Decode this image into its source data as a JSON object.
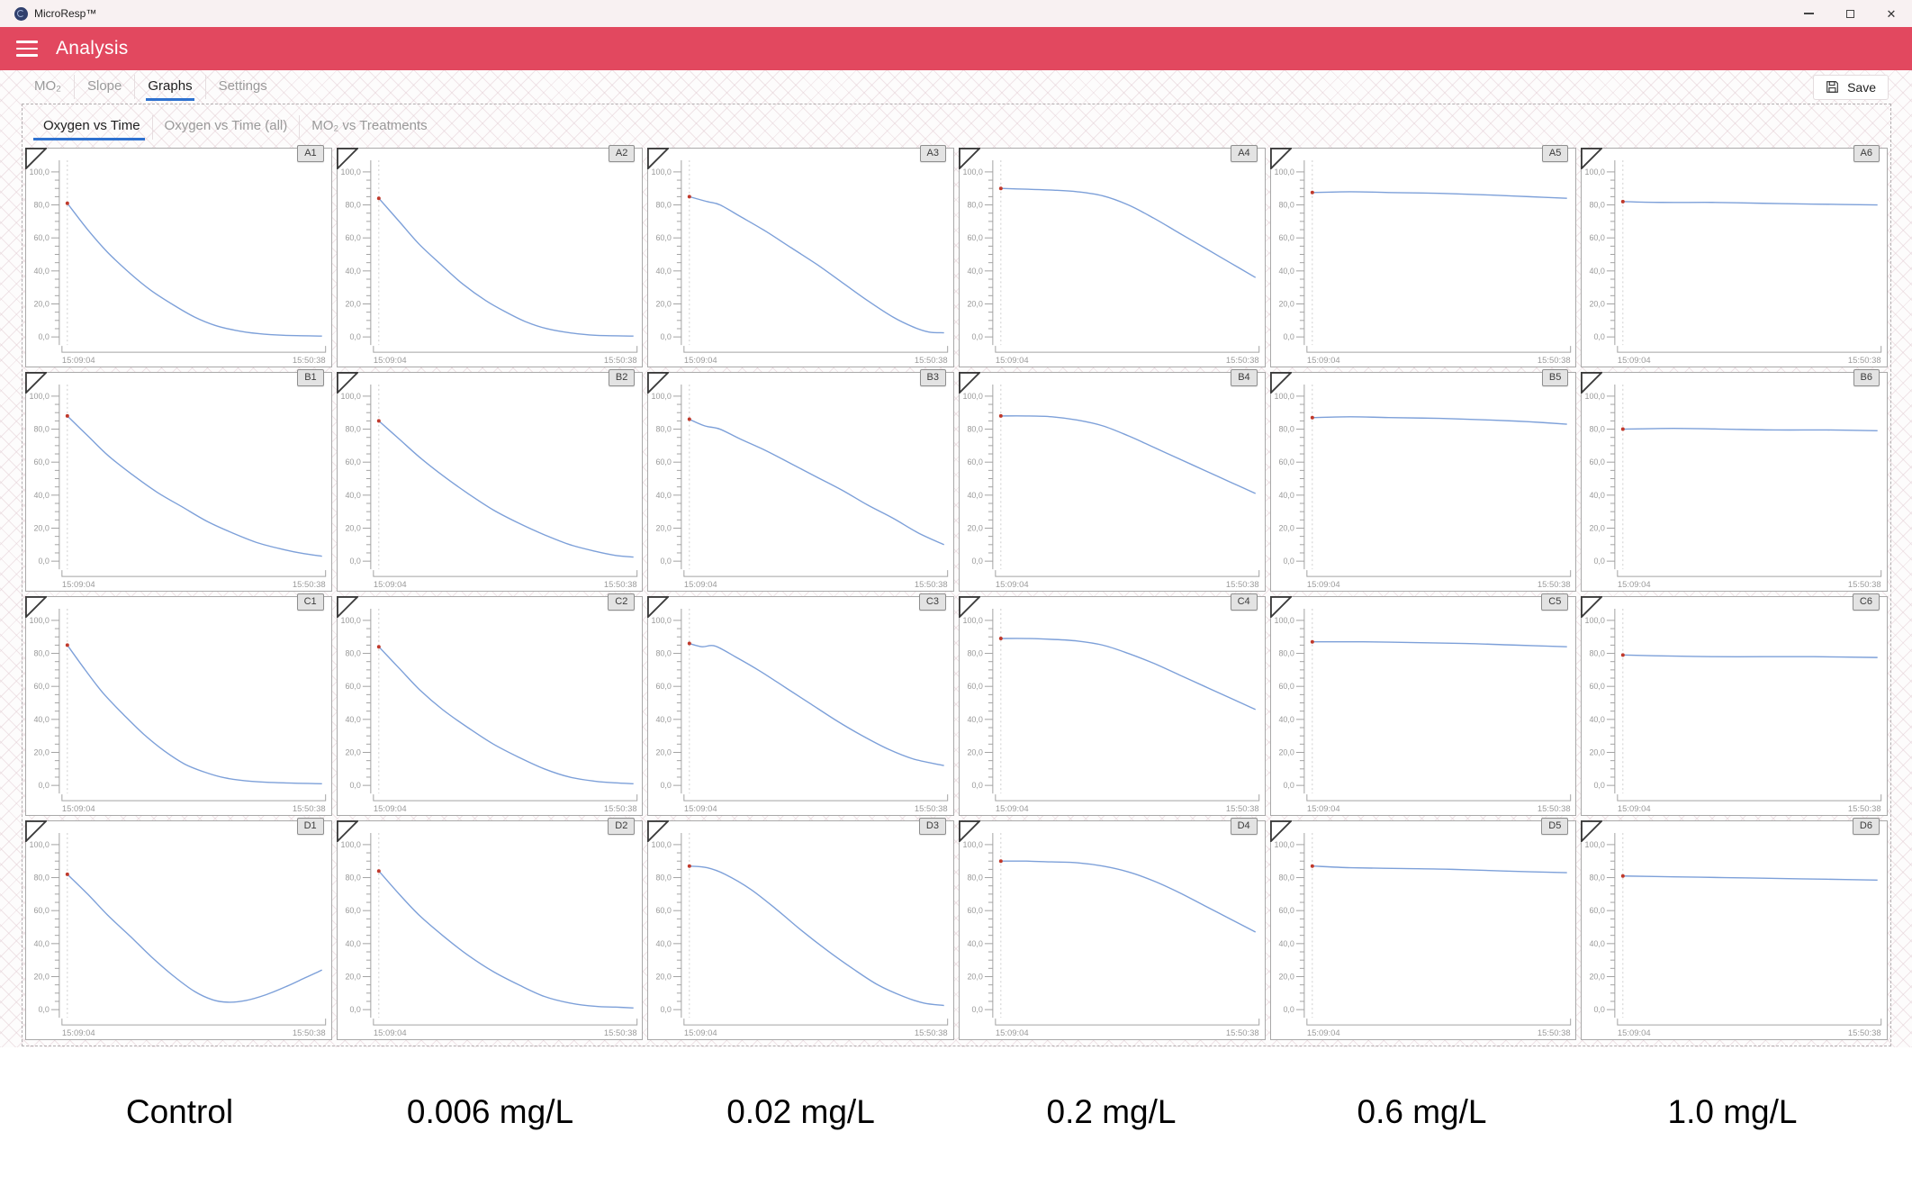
{
  "window": {
    "title": "MicroResp™"
  },
  "header": {
    "title": "Analysis",
    "color": "#e2485f"
  },
  "toolbar": {
    "tabs": [
      {
        "label": "MO₂",
        "active": false
      },
      {
        "label": "Slope",
        "active": false
      },
      {
        "label": "Graphs",
        "active": true
      },
      {
        "label": "Settings",
        "active": false
      }
    ],
    "save_label": "Save"
  },
  "subtabs": [
    {
      "label": "Oxygen vs Time",
      "active": true
    },
    {
      "label": "Oxygen vs Time (all)",
      "active": false
    },
    {
      "label": "MO₂ vs Treatments",
      "active": false
    }
  ],
  "chart_data": {
    "type": "line",
    "xlabel_start": "15:09:04",
    "xlabel_end": "15:50:38",
    "ylim": [
      0,
      100
    ],
    "y_tick_major": 20,
    "y_tick_minor": 5,
    "grid": {
      "rows": 4,
      "cols": 6
    },
    "line_color": "#7da0d9",
    "marker_color": "#c0392b",
    "axis_color": "#a3a3a3",
    "label_color": "#9a9a9a",
    "charts": [
      {
        "id": "A1",
        "points": [
          [
            0,
            81
          ],
          [
            0.08,
            65
          ],
          [
            0.16,
            51
          ],
          [
            0.25,
            38
          ],
          [
            0.33,
            28
          ],
          [
            0.42,
            19
          ],
          [
            0.5,
            12
          ],
          [
            0.58,
            7
          ],
          [
            0.66,
            4
          ],
          [
            0.75,
            2
          ],
          [
            0.85,
            1
          ],
          [
            1,
            0.5
          ]
        ]
      },
      {
        "id": "A2",
        "points": [
          [
            0,
            84
          ],
          [
            0.08,
            70
          ],
          [
            0.16,
            56
          ],
          [
            0.25,
            43
          ],
          [
            0.33,
            32
          ],
          [
            0.42,
            22
          ],
          [
            0.5,
            15
          ],
          [
            0.58,
            9
          ],
          [
            0.66,
            5
          ],
          [
            0.75,
            2.5
          ],
          [
            0.85,
            1
          ],
          [
            1,
            0.5
          ]
        ]
      },
      {
        "id": "A3",
        "points": [
          [
            0,
            85
          ],
          [
            0.07,
            82
          ],
          [
            0.12,
            80
          ],
          [
            0.2,
            73
          ],
          [
            0.3,
            64
          ],
          [
            0.4,
            54
          ],
          [
            0.5,
            44
          ],
          [
            0.6,
            33
          ],
          [
            0.7,
            22
          ],
          [
            0.8,
            12
          ],
          [
            0.88,
            6
          ],
          [
            0.94,
            3
          ],
          [
            1,
            2.5
          ]
        ]
      },
      {
        "id": "A4",
        "points": [
          [
            0,
            90
          ],
          [
            0.1,
            89.5
          ],
          [
            0.2,
            89
          ],
          [
            0.3,
            88
          ],
          [
            0.4,
            85.5
          ],
          [
            0.5,
            80
          ],
          [
            0.6,
            72
          ],
          [
            0.7,
            63
          ],
          [
            0.8,
            54
          ],
          [
            0.9,
            45
          ],
          [
            1,
            36
          ]
        ]
      },
      {
        "id": "A5",
        "points": [
          [
            0,
            87.5
          ],
          [
            0.15,
            88
          ],
          [
            0.3,
            87.5
          ],
          [
            0.5,
            87
          ],
          [
            0.7,
            86
          ],
          [
            0.85,
            85
          ],
          [
            1,
            84
          ]
        ]
      },
      {
        "id": "A6",
        "points": [
          [
            0,
            82
          ],
          [
            0.15,
            81.5
          ],
          [
            0.35,
            81.5
          ],
          [
            0.55,
            81
          ],
          [
            0.75,
            80.5
          ],
          [
            1,
            80
          ]
        ]
      },
      {
        "id": "B1",
        "points": [
          [
            0,
            88
          ],
          [
            0.08,
            76
          ],
          [
            0.16,
            64
          ],
          [
            0.25,
            53
          ],
          [
            0.35,
            42
          ],
          [
            0.45,
            33
          ],
          [
            0.55,
            24
          ],
          [
            0.65,
            17
          ],
          [
            0.75,
            11
          ],
          [
            0.85,
            7
          ],
          [
            0.93,
            4.5
          ],
          [
            1,
            3
          ]
        ]
      },
      {
        "id": "B2",
        "points": [
          [
            0,
            85
          ],
          [
            0.08,
            74
          ],
          [
            0.16,
            63
          ],
          [
            0.25,
            52
          ],
          [
            0.35,
            41
          ],
          [
            0.45,
            31
          ],
          [
            0.55,
            23
          ],
          [
            0.65,
            16
          ],
          [
            0.75,
            10
          ],
          [
            0.85,
            6
          ],
          [
            0.93,
            3.5
          ],
          [
            1,
            2.5
          ]
        ]
      },
      {
        "id": "B3",
        "points": [
          [
            0,
            86
          ],
          [
            0.06,
            82
          ],
          [
            0.12,
            80
          ],
          [
            0.2,
            74
          ],
          [
            0.3,
            67
          ],
          [
            0.4,
            59
          ],
          [
            0.5,
            51
          ],
          [
            0.6,
            43
          ],
          [
            0.7,
            34
          ],
          [
            0.8,
            26
          ],
          [
            0.9,
            17
          ],
          [
            1,
            10
          ]
        ]
      },
      {
        "id": "B4",
        "points": [
          [
            0,
            88
          ],
          [
            0.1,
            88
          ],
          [
            0.2,
            87.5
          ],
          [
            0.3,
            85.5
          ],
          [
            0.4,
            82
          ],
          [
            0.5,
            76
          ],
          [
            0.6,
            69
          ],
          [
            0.7,
            62
          ],
          [
            0.8,
            55
          ],
          [
            0.9,
            48
          ],
          [
            1,
            41
          ]
        ]
      },
      {
        "id": "B5",
        "points": [
          [
            0,
            87
          ],
          [
            0.15,
            87.5
          ],
          [
            0.3,
            87
          ],
          [
            0.5,
            86.5
          ],
          [
            0.7,
            85.5
          ],
          [
            0.85,
            84.5
          ],
          [
            1,
            83
          ]
        ]
      },
      {
        "id": "B6",
        "points": [
          [
            0,
            80
          ],
          [
            0.2,
            80.5
          ],
          [
            0.4,
            80
          ],
          [
            0.6,
            79.5
          ],
          [
            0.8,
            79.5
          ],
          [
            1,
            79
          ]
        ]
      },
      {
        "id": "C1",
        "points": [
          [
            0,
            85
          ],
          [
            0.07,
            70
          ],
          [
            0.14,
            56
          ],
          [
            0.22,
            43
          ],
          [
            0.3,
            31
          ],
          [
            0.38,
            21
          ],
          [
            0.46,
            13
          ],
          [
            0.54,
            8
          ],
          [
            0.62,
            4.5
          ],
          [
            0.72,
            2.5
          ],
          [
            0.85,
            1.5
          ],
          [
            1,
            1
          ]
        ]
      },
      {
        "id": "C2",
        "points": [
          [
            0,
            84
          ],
          [
            0.08,
            71
          ],
          [
            0.16,
            58
          ],
          [
            0.25,
            46
          ],
          [
            0.35,
            35
          ],
          [
            0.45,
            25
          ],
          [
            0.55,
            17
          ],
          [
            0.65,
            10
          ],
          [
            0.75,
            5
          ],
          [
            0.85,
            2.5
          ],
          [
            0.93,
            1.5
          ],
          [
            1,
            1
          ]
        ]
      },
      {
        "id": "C3",
        "points": [
          [
            0,
            86
          ],
          [
            0.05,
            84
          ],
          [
            0.1,
            84.5
          ],
          [
            0.18,
            78
          ],
          [
            0.28,
            69
          ],
          [
            0.38,
            59
          ],
          [
            0.48,
            49
          ],
          [
            0.58,
            39
          ],
          [
            0.68,
            30
          ],
          [
            0.78,
            22
          ],
          [
            0.88,
            16
          ],
          [
            1,
            12
          ]
        ]
      },
      {
        "id": "C4",
        "points": [
          [
            0,
            89
          ],
          [
            0.1,
            89
          ],
          [
            0.2,
            88.5
          ],
          [
            0.3,
            87.5
          ],
          [
            0.4,
            85
          ],
          [
            0.5,
            80
          ],
          [
            0.6,
            74
          ],
          [
            0.7,
            67
          ],
          [
            0.8,
            60
          ],
          [
            0.9,
            53
          ],
          [
            1,
            46
          ]
        ]
      },
      {
        "id": "C5",
        "points": [
          [
            0,
            87
          ],
          [
            0.2,
            87
          ],
          [
            0.4,
            86.5
          ],
          [
            0.6,
            86
          ],
          [
            0.8,
            85
          ],
          [
            1,
            84
          ]
        ]
      },
      {
        "id": "C6",
        "points": [
          [
            0,
            79
          ],
          [
            0.15,
            78.5
          ],
          [
            0.35,
            78
          ],
          [
            0.55,
            78
          ],
          [
            0.75,
            78
          ],
          [
            1,
            77.5
          ]
        ]
      },
      {
        "id": "D1",
        "points": [
          [
            0,
            82
          ],
          [
            0.08,
            70
          ],
          [
            0.16,
            57
          ],
          [
            0.25,
            44
          ],
          [
            0.33,
            32
          ],
          [
            0.42,
            20
          ],
          [
            0.5,
            11
          ],
          [
            0.57,
            6
          ],
          [
            0.63,
            4.5
          ],
          [
            0.7,
            5.5
          ],
          [
            0.78,
            9
          ],
          [
            0.86,
            14
          ],
          [
            0.93,
            19
          ],
          [
            1,
            24
          ]
        ]
      },
      {
        "id": "D2",
        "points": [
          [
            0,
            84
          ],
          [
            0.08,
            70
          ],
          [
            0.16,
            57
          ],
          [
            0.25,
            45
          ],
          [
            0.35,
            33
          ],
          [
            0.45,
            23
          ],
          [
            0.55,
            15
          ],
          [
            0.65,
            8
          ],
          [
            0.75,
            4
          ],
          [
            0.85,
            2
          ],
          [
            0.93,
            1.5
          ],
          [
            1,
            1
          ]
        ]
      },
      {
        "id": "D3",
        "points": [
          [
            0,
            87
          ],
          [
            0.07,
            86
          ],
          [
            0.14,
            82
          ],
          [
            0.24,
            73
          ],
          [
            0.34,
            61
          ],
          [
            0.44,
            48
          ],
          [
            0.54,
            36
          ],
          [
            0.64,
            25
          ],
          [
            0.74,
            15
          ],
          [
            0.84,
            8
          ],
          [
            0.92,
            4
          ],
          [
            1,
            2.5
          ]
        ]
      },
      {
        "id": "D4",
        "points": [
          [
            0,
            90
          ],
          [
            0.1,
            90
          ],
          [
            0.2,
            89.5
          ],
          [
            0.3,
            89
          ],
          [
            0.4,
            87
          ],
          [
            0.5,
            83.5
          ],
          [
            0.6,
            78
          ],
          [
            0.7,
            71
          ],
          [
            0.8,
            63
          ],
          [
            0.9,
            55
          ],
          [
            1,
            47
          ]
        ]
      },
      {
        "id": "D5",
        "points": [
          [
            0,
            87
          ],
          [
            0.15,
            86
          ],
          [
            0.35,
            85.5
          ],
          [
            0.55,
            85
          ],
          [
            0.75,
            84
          ],
          [
            1,
            83
          ]
        ]
      },
      {
        "id": "D6",
        "points": [
          [
            0,
            81
          ],
          [
            0.2,
            80.5
          ],
          [
            0.4,
            80
          ],
          [
            0.6,
            79.5
          ],
          [
            0.8,
            79
          ],
          [
            1,
            78.5
          ]
        ]
      }
    ]
  },
  "treatment_labels": [
    "Control",
    "0.006 mg/L",
    "0.02 mg/L",
    "0.2 mg/L",
    "0.6 mg/L",
    "1.0 mg/L"
  ]
}
